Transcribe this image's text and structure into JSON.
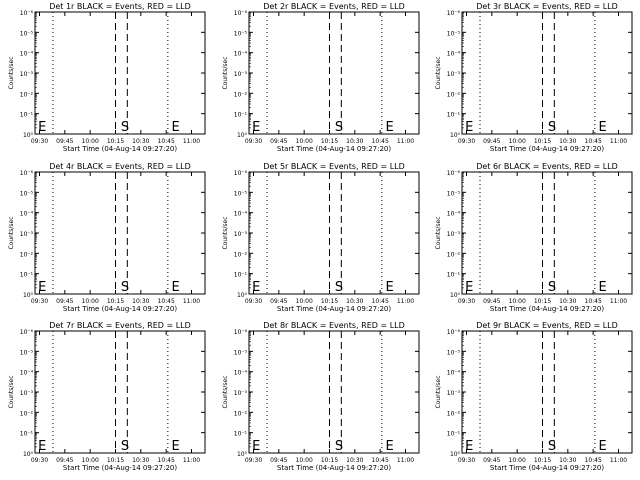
{
  "chart_data": [
    {
      "type": "line",
      "title": "Det 1r BLACK = Events, RED = LLD",
      "ylabel": "Counts/sec",
      "xlabel": "Start Time (04-Aug-14 09:27:20)",
      "x_ticks": [
        "09:30",
        "09:45",
        "10:00",
        "10:15",
        "10:30",
        "10:45",
        "11:00"
      ],
      "y_ticks": [
        "10⁰",
        "10⁻¹",
        "10⁻²",
        "10⁻³",
        "10⁻⁴",
        "10⁻⁵",
        "10⁻⁶"
      ],
      "xlim": [
        "09:27:20",
        "11:08"
      ],
      "ylim": [
        1e-06,
        1
      ],
      "y_scale": "log",
      "dotted_lines": [
        "09:38",
        "10:46"
      ],
      "dashed_lines": [
        "10:15",
        "10:22"
      ],
      "markers": [
        {
          "label": "E",
          "x": "09:28"
        },
        {
          "label": "S",
          "x": "10:17"
        },
        {
          "label": "E",
          "x": "10:47"
        }
      ],
      "series": []
    },
    {
      "type": "line",
      "title": "Det 2r BLACK = Events, RED = LLD",
      "ylabel": "Counts/sec",
      "xlabel": "Start Time (04-Aug-14 09:27:20)",
      "x_ticks": [
        "09:30",
        "09:45",
        "10:00",
        "10:15",
        "10:30",
        "10:45",
        "11:00"
      ],
      "y_ticks": [
        "10⁰",
        "10⁻¹",
        "10⁻²",
        "10⁻³",
        "10⁻⁴",
        "10⁻⁵",
        "10⁻⁶"
      ],
      "xlim": [
        "09:27:20",
        "11:08"
      ],
      "ylim": [
        1e-06,
        1
      ],
      "y_scale": "log",
      "dotted_lines": [
        "09:38",
        "10:46"
      ],
      "dashed_lines": [
        "10:15",
        "10:22"
      ],
      "markers": [
        {
          "label": "E",
          "x": "09:28"
        },
        {
          "label": "S",
          "x": "10:17"
        },
        {
          "label": "E",
          "x": "10:47"
        }
      ],
      "series": []
    },
    {
      "type": "line",
      "title": "Det 3r BLACK = Events, RED = LLD",
      "ylabel": "Counts/sec",
      "xlabel": "Start Time (04-Aug-14 09:27:20)",
      "x_ticks": [
        "09:30",
        "09:45",
        "10:00",
        "10:15",
        "10:30",
        "10:45",
        "11:00"
      ],
      "y_ticks": [
        "10⁰",
        "10⁻¹",
        "10⁻²",
        "10⁻³",
        "10⁻⁴",
        "10⁻⁵",
        "10⁻⁶"
      ],
      "xlim": [
        "09:27:20",
        "11:08"
      ],
      "ylim": [
        1e-06,
        1
      ],
      "y_scale": "log",
      "dotted_lines": [
        "09:38",
        "10:46"
      ],
      "dashed_lines": [
        "10:15",
        "10:22"
      ],
      "markers": [
        {
          "label": "E",
          "x": "09:28"
        },
        {
          "label": "S",
          "x": "10:17"
        },
        {
          "label": "E",
          "x": "10:47"
        }
      ],
      "series": []
    },
    {
      "type": "line",
      "title": "Det 4r BLACK = Events, RED = LLD",
      "ylabel": "Counts/sec",
      "xlabel": "Start Time (04-Aug-14 09:27:20)",
      "x_ticks": [
        "09:30",
        "09:45",
        "10:00",
        "10:15",
        "10:30",
        "10:45",
        "11:00"
      ],
      "y_ticks": [
        "10⁰",
        "10⁻¹",
        "10⁻²",
        "10⁻³",
        "10⁻⁴",
        "10⁻⁵",
        "10⁻⁶"
      ],
      "xlim": [
        "09:27:20",
        "11:08"
      ],
      "ylim": [
        1e-06,
        1
      ],
      "y_scale": "log",
      "dotted_lines": [
        "09:38",
        "10:46"
      ],
      "dashed_lines": [
        "10:15",
        "10:22"
      ],
      "markers": [
        {
          "label": "E",
          "x": "09:28"
        },
        {
          "label": "S",
          "x": "10:17"
        },
        {
          "label": "E",
          "x": "10:47"
        }
      ],
      "series": []
    },
    {
      "type": "line",
      "title": "Det 5r BLACK = Events, RED = LLD",
      "ylabel": "Counts/sec",
      "xlabel": "Start Time (04-Aug-14 09:27:20)",
      "x_ticks": [
        "09:30",
        "09:45",
        "10:00",
        "10:15",
        "10:30",
        "10:45",
        "11:00"
      ],
      "y_ticks": [
        "10⁰",
        "10⁻¹",
        "10⁻²",
        "10⁻³",
        "10⁻⁴",
        "10⁻⁵",
        "10⁻⁶"
      ],
      "xlim": [
        "09:27:20",
        "11:08"
      ],
      "ylim": [
        1e-06,
        1
      ],
      "y_scale": "log",
      "dotted_lines": [
        "09:38",
        "10:46"
      ],
      "dashed_lines": [
        "10:15",
        "10:22"
      ],
      "markers": [
        {
          "label": "E",
          "x": "09:28"
        },
        {
          "label": "S",
          "x": "10:17"
        },
        {
          "label": "E",
          "x": "10:47"
        }
      ],
      "series": []
    },
    {
      "type": "line",
      "title": "Det 6r BLACK = Events, RED = LLD",
      "ylabel": "Counts/sec",
      "xlabel": "Start Time (04-Aug-14 09:27:20)",
      "x_ticks": [
        "09:30",
        "09:45",
        "10:00",
        "10:15",
        "10:30",
        "10:45",
        "11:00"
      ],
      "y_ticks": [
        "10⁰",
        "10⁻¹",
        "10⁻²",
        "10⁻³",
        "10⁻⁴",
        "10⁻⁵",
        "10⁻⁶"
      ],
      "xlim": [
        "09:27:20",
        "11:08"
      ],
      "ylim": [
        1e-06,
        1
      ],
      "y_scale": "log",
      "dotted_lines": [
        "09:38",
        "10:46"
      ],
      "dashed_lines": [
        "10:15",
        "10:22"
      ],
      "markers": [
        {
          "label": "E",
          "x": "09:28"
        },
        {
          "label": "S",
          "x": "10:17"
        },
        {
          "label": "E",
          "x": "10:47"
        }
      ],
      "series": []
    },
    {
      "type": "line",
      "title": "Det 7r BLACK = Events, RED = LLD",
      "ylabel": "Counts/sec",
      "xlabel": "Start Time (04-Aug-14 09:27:20)",
      "x_ticks": [
        "09:30",
        "09:45",
        "10:00",
        "10:15",
        "10:30",
        "10:45",
        "11:00"
      ],
      "y_ticks": [
        "10⁰",
        "10⁻¹",
        "10⁻²",
        "10⁻³",
        "10⁻⁴",
        "10⁻⁵",
        "10⁻⁶"
      ],
      "xlim": [
        "09:27:20",
        "11:08"
      ],
      "ylim": [
        1e-06,
        1
      ],
      "y_scale": "log",
      "dotted_lines": [
        "09:38",
        "10:46"
      ],
      "dashed_lines": [
        "10:15",
        "10:22"
      ],
      "markers": [
        {
          "label": "E",
          "x": "09:28"
        },
        {
          "label": "S",
          "x": "10:17"
        },
        {
          "label": "E",
          "x": "10:47"
        }
      ],
      "series": []
    },
    {
      "type": "line",
      "title": "Det 8r BLACK = Events, RED = LLD",
      "ylabel": "Counts/sec",
      "xlabel": "Start Time (04-Aug-14 09:27:20)",
      "x_ticks": [
        "09:30",
        "09:45",
        "10:00",
        "10:15",
        "10:30",
        "10:45",
        "11:00"
      ],
      "y_ticks": [
        "10⁰",
        "10⁻¹",
        "10⁻²",
        "10⁻³",
        "10⁻⁴",
        "10⁻⁵",
        "10⁻⁶"
      ],
      "xlim": [
        "09:27:20",
        "11:08"
      ],
      "ylim": [
        1e-06,
        1
      ],
      "y_scale": "log",
      "dotted_lines": [
        "09:38",
        "10:46"
      ],
      "dashed_lines": [
        "10:15",
        "10:22"
      ],
      "markers": [
        {
          "label": "E",
          "x": "09:28"
        },
        {
          "label": "S",
          "x": "10:17"
        },
        {
          "label": "E",
          "x": "10:47"
        }
      ],
      "series": []
    },
    {
      "type": "line",
      "title": "Det 9r BLACK = Events, RED = LLD",
      "ylabel": "Counts/sec",
      "xlabel": "Start Time (04-Aug-14 09:27:20)",
      "x_ticks": [
        "09:30",
        "09:45",
        "10:00",
        "10:15",
        "10:30",
        "10:45",
        "11:00"
      ],
      "y_ticks": [
        "10⁰",
        "10⁻¹",
        "10⁻²",
        "10⁻³",
        "10⁻⁴",
        "10⁻⁵",
        "10⁻⁶"
      ],
      "xlim": [
        "09:27:20",
        "11:08"
      ],
      "ylim": [
        1e-06,
        1
      ],
      "y_scale": "log",
      "dotted_lines": [
        "09:38",
        "10:46"
      ],
      "dashed_lines": [
        "10:15",
        "10:22"
      ],
      "markers": [
        {
          "label": "E",
          "x": "09:28"
        },
        {
          "label": "S",
          "x": "10:17"
        },
        {
          "label": "E",
          "x": "10:47"
        }
      ],
      "series": []
    }
  ]
}
